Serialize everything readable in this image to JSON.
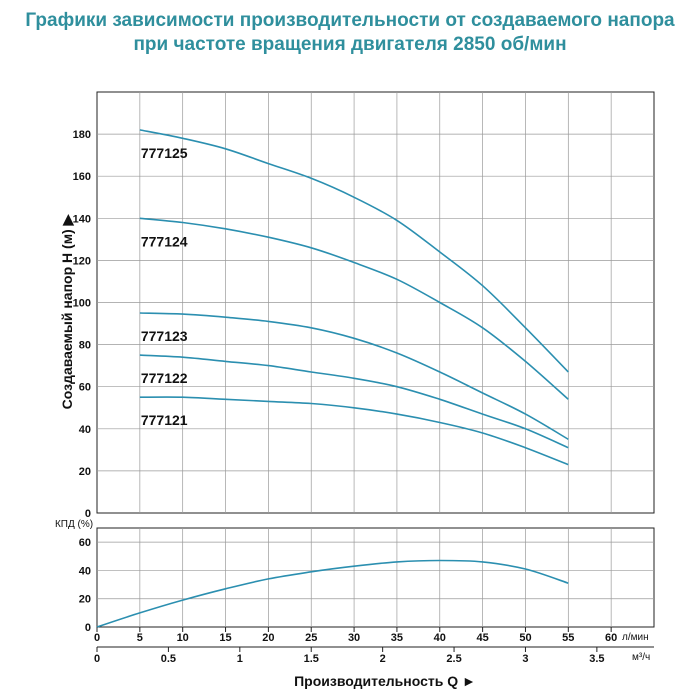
{
  "title": {
    "line1": "Графики зависимости производительности от создаваемого напора",
    "line2": "при частоте вращения двигателя 2850 об/мин"
  },
  "colors": {
    "title": "#2f8f9d",
    "curve": "#2b8fb0",
    "grid": "#9a9a9a"
  },
  "chart_data": [
    {
      "type": "line",
      "ylabel": "Создаваемый напор H (м) ▶",
      "ylim": [
        0,
        200
      ],
      "yticks": [
        "0",
        "20",
        "40",
        "60",
        "80",
        "100",
        "120",
        "140",
        "160",
        "180"
      ],
      "xlim": [
        0,
        65
      ],
      "grid": true,
      "series": [
        {
          "name": "777125",
          "x": [
            5,
            10,
            15,
            20,
            25,
            30,
            35,
            40,
            45,
            50,
            55
          ],
          "values": [
            182,
            178,
            173,
            166,
            159,
            150,
            139,
            124,
            108,
            88,
            67
          ]
        },
        {
          "name": "777124",
          "x": [
            5,
            10,
            15,
            20,
            25,
            30,
            35,
            40,
            45,
            50,
            55
          ],
          "values": [
            140,
            138,
            135,
            131,
            126,
            119,
            111,
            100,
            88,
            72,
            54
          ]
        },
        {
          "name": "777123",
          "x": [
            5,
            10,
            15,
            20,
            25,
            30,
            35,
            40,
            45,
            50,
            55
          ],
          "values": [
            95,
            94.5,
            93,
            91,
            88,
            83,
            76,
            67,
            57,
            47,
            35
          ]
        },
        {
          "name": "777122",
          "x": [
            5,
            10,
            15,
            20,
            25,
            30,
            35,
            40,
            45,
            50,
            55
          ],
          "values": [
            75,
            74,
            72,
            70,
            67,
            64,
            60,
            54,
            47,
            40,
            31
          ]
        },
        {
          "name": "777121",
          "x": [
            5,
            10,
            15,
            20,
            25,
            30,
            35,
            40,
            45,
            50,
            55
          ],
          "values": [
            55,
            55,
            54,
            53,
            52,
            50,
            47,
            43,
            38,
            31,
            23
          ]
        }
      ]
    },
    {
      "type": "line",
      "ylabel": "КПД (%)",
      "ylim": [
        0,
        70
      ],
      "yticks": [
        "0",
        "20",
        "40",
        "60"
      ],
      "xlim": [
        0,
        65
      ],
      "grid": true,
      "series": [
        {
          "x": [
            0,
            5,
            10,
            15,
            20,
            25,
            30,
            35,
            40,
            45,
            50,
            55
          ],
          "values": [
            0,
            10,
            19,
            27,
            34,
            39,
            43,
            46,
            47,
            46,
            41,
            31
          ]
        }
      ]
    }
  ],
  "x_axis": {
    "flow_unit": "л/мин",
    "flow_ticks": [
      "0",
      "5",
      "10",
      "15",
      "20",
      "25",
      "30",
      "35",
      "40",
      "45",
      "50",
      "55",
      "60"
    ],
    "m3_unit": "м³/ч",
    "m3_ticks": [
      "0",
      "0.5",
      "1",
      "1.5",
      "2",
      "2.5",
      "3",
      "3.5"
    ],
    "label": "Производительность Q ►"
  }
}
